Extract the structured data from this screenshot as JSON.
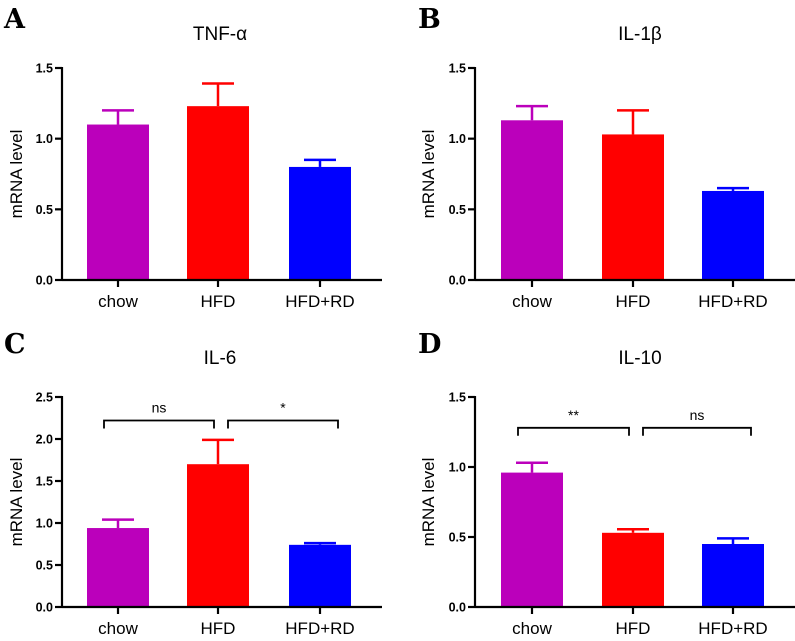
{
  "chart_data": [
    {
      "type": "bar",
      "panel": "A",
      "title": "TNF-α",
      "ylabel": "mRNA level",
      "xlabel": "",
      "ylim": [
        0,
        1.5
      ],
      "yticks": [
        "0.0",
        "0.5",
        "1.0",
        "1.5"
      ],
      "ytick_values": [
        0,
        0.5,
        1.0,
        1.5
      ],
      "categories": [
        "chow",
        "HFD",
        "HFD+RD"
      ],
      "values": [
        1.1,
        1.23,
        0.8
      ],
      "errors": [
        0.1,
        0.16,
        0.05
      ],
      "colors": [
        "#bb00bb",
        "#ff0000",
        "#0000ff"
      ],
      "significance": []
    },
    {
      "type": "bar",
      "panel": "B",
      "title": "IL-1β",
      "ylabel": "mRNA level",
      "xlabel": "",
      "ylim": [
        0,
        1.5
      ],
      "yticks": [
        "0.0",
        "0.5",
        "1.0",
        "1.5"
      ],
      "ytick_values": [
        0,
        0.5,
        1.0,
        1.5
      ],
      "categories": [
        "chow",
        "HFD",
        "HFD+RD"
      ],
      "values": [
        1.13,
        1.03,
        0.63
      ],
      "errors": [
        0.1,
        0.17,
        0.02
      ],
      "colors": [
        "#bb00bb",
        "#ff0000",
        "#0000ff"
      ],
      "significance": []
    },
    {
      "type": "bar",
      "panel": "C",
      "title": "IL-6",
      "ylabel": "mRNA level",
      "xlabel": "",
      "ylim": [
        0,
        2.5
      ],
      "yticks": [
        "0.0",
        "0.5",
        "1.0",
        "1.5",
        "2.0",
        "2.5"
      ],
      "ytick_values": [
        0,
        0.5,
        1.0,
        1.5,
        2.0,
        2.5
      ],
      "categories": [
        "chow",
        "HFD",
        "HFD+RD"
      ],
      "values": [
        0.94,
        1.7,
        0.74
      ],
      "errors": [
        0.1,
        0.29,
        0.02
      ],
      "colors": [
        "#bb00bb",
        "#ff0000",
        "#0000ff"
      ],
      "significance": [
        {
          "from": 0,
          "to": 1,
          "label": "ns",
          "y": 2.22
        },
        {
          "from": 1,
          "to": 2,
          "label": "*",
          "y": 2.22
        }
      ]
    },
    {
      "type": "bar",
      "panel": "D",
      "title": "IL-10",
      "ylabel": "mRNA level",
      "xlabel": "",
      "ylim": [
        0,
        1.5
      ],
      "yticks": [
        "0.0",
        "0.5",
        "1.0",
        "1.5"
      ],
      "ytick_values": [
        0,
        0.5,
        1.0,
        1.5
      ],
      "categories": [
        "chow",
        "HFD",
        "HFD+RD"
      ],
      "values": [
        0.96,
        0.53,
        0.45
      ],
      "errors": [
        0.07,
        0.025,
        0.04
      ],
      "colors": [
        "#bb00bb",
        "#ff0000",
        "#0000ff"
      ],
      "significance": [
        {
          "from": 0,
          "to": 1,
          "label": "**",
          "y": 1.28
        },
        {
          "from": 1,
          "to": 2,
          "label": "ns",
          "y": 1.28
        }
      ]
    }
  ]
}
